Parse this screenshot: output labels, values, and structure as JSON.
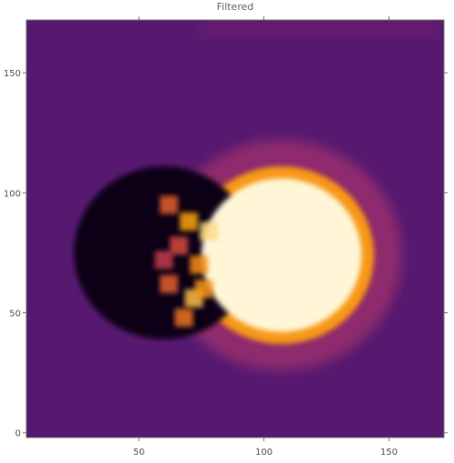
{
  "chart_data": {
    "type": "heatmap",
    "title": "Filtered",
    "xlabel": "",
    "ylabel": "",
    "xlim": [
      5,
      172
    ],
    "ylim": [
      -2,
      172
    ],
    "x_ticks": [
      50,
      100,
      150
    ],
    "y_ticks": [
      0,
      50,
      100,
      150
    ],
    "colormap": "inferno",
    "colormap_stops": [
      "#000004",
      "#2b0a3d",
      "#5b1a74",
      "#8c2a6e",
      "#c43c4e",
      "#ec6926",
      "#fba70f",
      "#fde5a0",
      "#fffbe8"
    ],
    "features": {
      "background_level": 0.24,
      "outer_halo": {
        "center": [
          107,
          74
        ],
        "radius": 48,
        "level": 0.38
      },
      "middle_ring": {
        "center": [
          107,
          74
        ],
        "radius": 37,
        "level": 0.72
      },
      "bright_disk": {
        "center": [
          107,
          74
        ],
        "radius": 32,
        "level": 0.97
      },
      "dark_crescent": {
        "center": [
          60,
          75
        ],
        "radius": 36,
        "level": 0.03
      },
      "top_band": {
        "y_range": [
          165,
          171
        ],
        "level": 0.3
      }
    }
  }
}
